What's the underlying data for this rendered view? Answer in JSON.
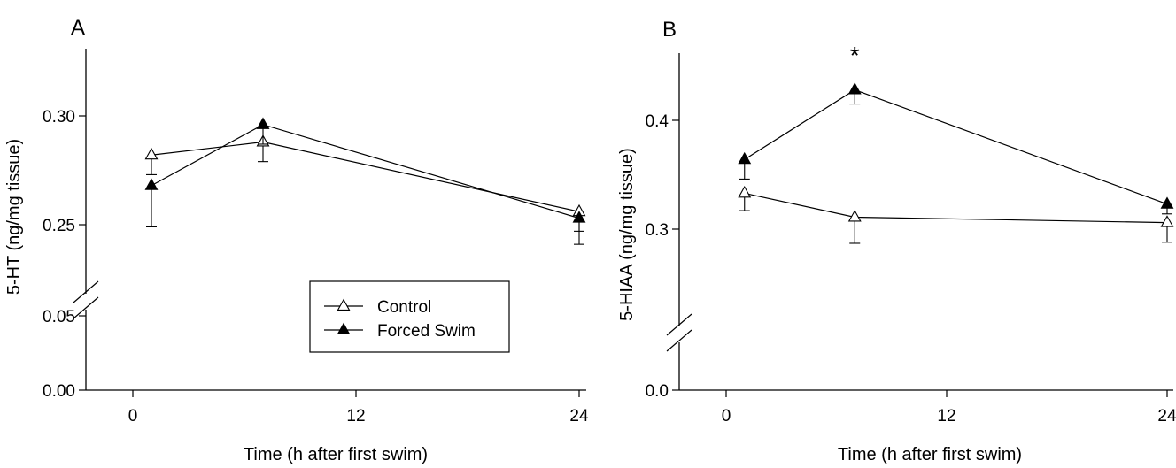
{
  "chart_data": [
    {
      "panel": "A",
      "type": "line",
      "xlabel": "Time (h after first swim)",
      "ylabel": "5-HT (ng/mg tissue)",
      "x_ticks": [
        "0",
        "12",
        "24"
      ],
      "y_ticks": [
        "0.00",
        "0.05",
        "0.25",
        "0.30"
      ],
      "xlim": [
        -2.5,
        25
      ],
      "ylim": [
        0,
        0.33
      ],
      "axis_break": true,
      "legend": {
        "position": "center",
        "entries": [
          "Control",
          "Forced Swim"
        ]
      },
      "series": [
        {
          "name": "Control",
          "marker": "open-triangle",
          "x": [
            1,
            7,
            24
          ],
          "y": [
            0.282,
            0.288,
            0.256
          ],
          "error": [
            0.009,
            0.009,
            0.009
          ]
        },
        {
          "name": "Forced Swim",
          "marker": "filled-triangle",
          "x": [
            1,
            7,
            24
          ],
          "y": [
            0.268,
            0.296,
            0.253
          ],
          "error": [
            0.019,
            0.009,
            0.012
          ]
        }
      ],
      "annotations": []
    },
    {
      "panel": "B",
      "type": "line",
      "xlabel": "Time (h after first swim)",
      "ylabel": "5-HIAA (ng/mg tissue)",
      "x_ticks": [
        "0",
        "12",
        "24"
      ],
      "y_ticks": [
        "0.0",
        "0.3",
        "0.4"
      ],
      "xlim": [
        -2.5,
        25
      ],
      "ylim": [
        0,
        0.46
      ],
      "axis_break": true,
      "legend": null,
      "series": [
        {
          "name": "Control",
          "marker": "open-triangle",
          "x": [
            1,
            7,
            24
          ],
          "y": [
            0.333,
            0.311,
            0.306
          ],
          "error": [
            0.016,
            0.024,
            0.018
          ]
        },
        {
          "name": "Forced Swim",
          "marker": "filled-triangle",
          "x": [
            1,
            7,
            24
          ],
          "y": [
            0.364,
            0.428,
            0.323
          ],
          "error": [
            0.018,
            0.013,
            0.009
          ]
        }
      ],
      "annotations": [
        {
          "text": "*",
          "x": 7
        }
      ]
    }
  ]
}
